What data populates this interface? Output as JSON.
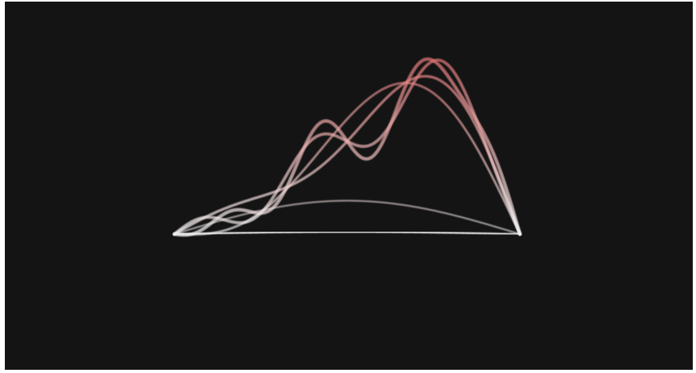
{
  "canvas": {
    "background": "#141414",
    "page_background": "#ffffff"
  },
  "palette": {
    "positive": "#e06a6a",
    "neutral": "#f2f2f2",
    "negative": "#3d93b3"
  },
  "visualization": {
    "type": "fourier-series-partial-sums",
    "curve_count": 6,
    "interval": [
      0,
      1
    ],
    "amplitude_range": [
      -1,
      1
    ]
  }
}
